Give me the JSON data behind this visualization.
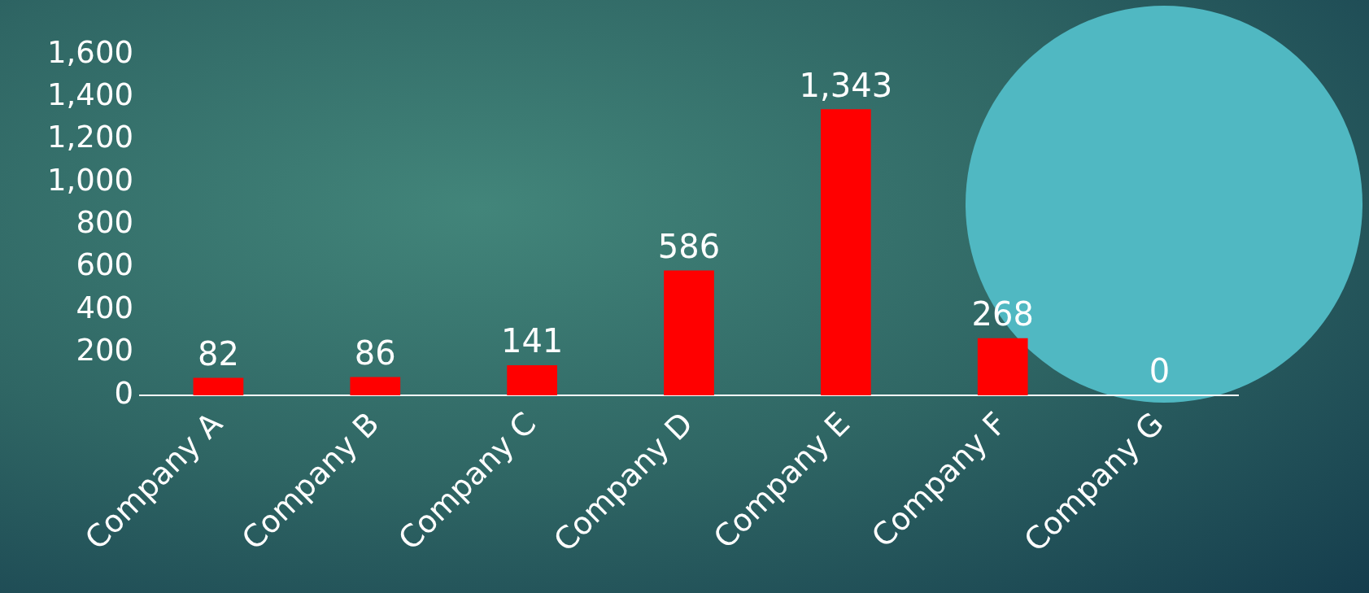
{
  "chart_data": {
    "type": "bar",
    "categories": [
      "Company A",
      "Company B",
      "Company C",
      "Company D",
      "Company E",
      "Company F",
      "Company G"
    ],
    "values": [
      82,
      86,
      141,
      586,
      1343,
      268,
      0
    ],
    "color": "#ff0000",
    "ylim": [
      0,
      1600
    ],
    "yticks": [
      0,
      {
        "value": 200,
        "label": "200"
      },
      {
        "value": 400,
        "label": "400"
      },
      {
        "value": 600,
        "label": "600"
      },
      {
        "value": 800,
        "label": "800"
      },
      {
        "value": 1000,
        "label": "1,000"
      },
      {
        "value": 1200,
        "label": "1,200"
      },
      {
        "value": 1400,
        "label": "1,400"
      },
      {
        "value": 1600,
        "label": "1,600"
      }
    ],
    "value_labels": [
      "82",
      "86",
      "141",
      "586",
      "1,343",
      "268",
      "0"
    ],
    "grid": false,
    "legend": false
  }
}
